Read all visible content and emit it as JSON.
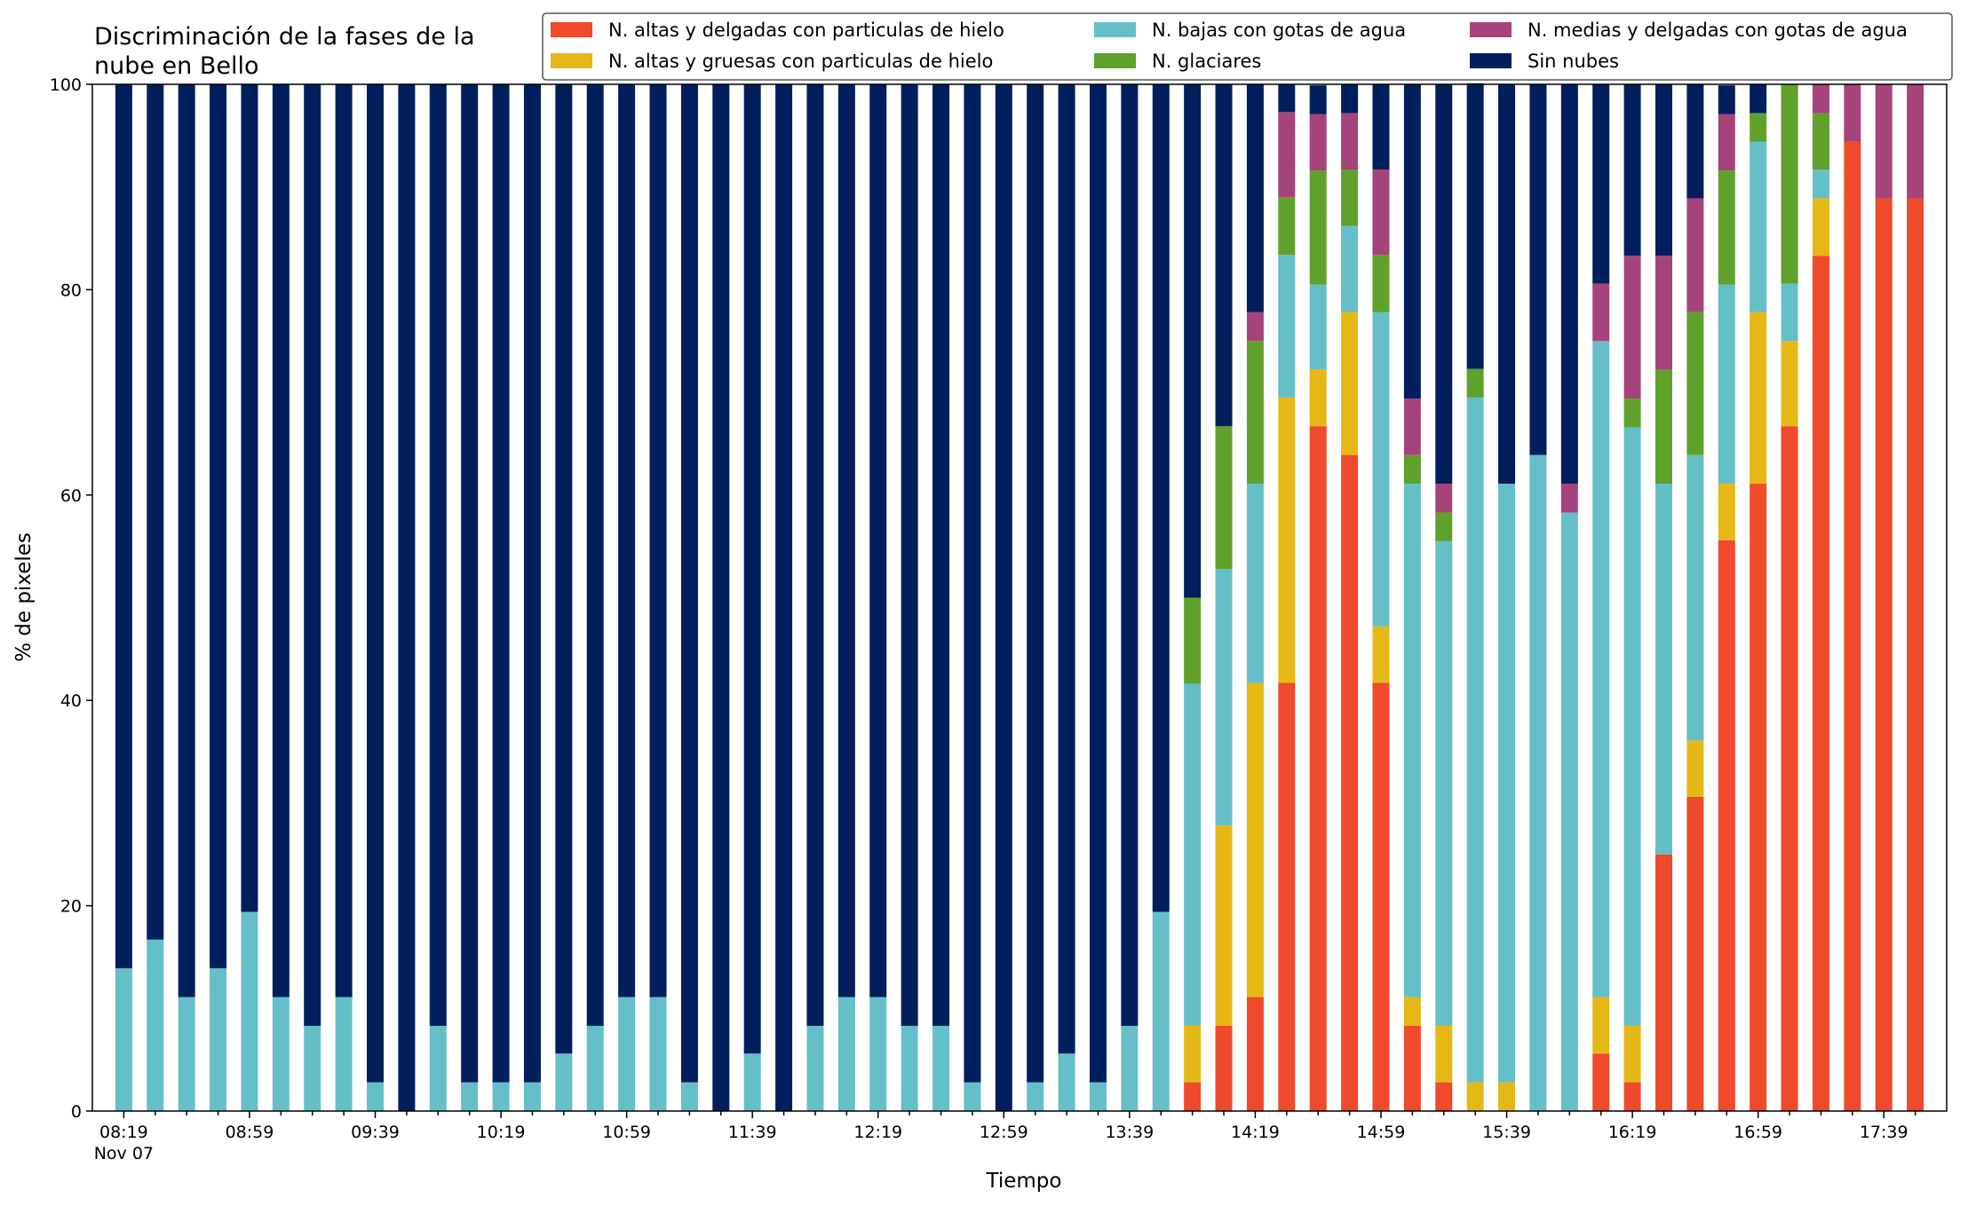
{
  "chart_data": {
    "type": "bar",
    "stacked": true,
    "title_lines": [
      "Discriminación de la fases de la",
      "nube en Bello"
    ],
    "xlabel": "Tiempo",
    "ylabel": "% de pixeles",
    "ylim": [
      0,
      100
    ],
    "yticks": [
      "0",
      "20",
      "40",
      "60",
      "80",
      "100"
    ],
    "grid": false,
    "legend_position": "top-right",
    "x_start_time": "08:19",
    "x_interval_minutes": 10,
    "x_tick_labels": [
      {
        "label": "08:19",
        "sub": "Nov 07"
      },
      {
        "label": "08:59"
      },
      {
        "label": "09:39"
      },
      {
        "label": "10:19"
      },
      {
        "label": "10:59"
      },
      {
        "label": "11:39"
      },
      {
        "label": "12:19"
      },
      {
        "label": "12:59"
      },
      {
        "label": "13:39"
      },
      {
        "label": "14:19"
      },
      {
        "label": "14:59"
      },
      {
        "label": "15:39"
      },
      {
        "label": "16:19"
      },
      {
        "label": "16:59"
      },
      {
        "label": "17:39"
      }
    ],
    "series": [
      {
        "name": "N. altas y delgadas con particulas de hielo",
        "color": "#ee4a2b",
        "values": [
          0,
          0,
          0,
          0,
          0,
          0,
          0,
          0,
          0,
          0,
          0,
          0,
          0,
          0,
          0,
          0,
          0,
          0,
          0,
          0,
          0,
          0,
          0,
          0,
          0,
          0,
          0,
          0,
          0,
          0,
          0,
          0,
          0,
          0,
          2.8,
          8.3,
          11.1,
          41.7,
          66.7,
          63.9,
          41.7,
          8.3,
          2.8,
          0,
          0,
          0,
          0,
          5.6,
          2.8,
          25,
          30.6,
          55.6,
          61.1,
          66.7,
          83.3,
          94.4,
          88.9,
          88.9
        ]
      },
      {
        "name": "N. altas y gruesas con particulas de hielo",
        "color": "#e6b816",
        "values": [
          0,
          0,
          0,
          0,
          0,
          0,
          0,
          0,
          0,
          0,
          0,
          0,
          0,
          0,
          0,
          0,
          0,
          0,
          0,
          0,
          0,
          0,
          0,
          0,
          0,
          0,
          0,
          0,
          0,
          0,
          0,
          0,
          0,
          0,
          5.5,
          19.5,
          30.6,
          27.8,
          5.5,
          13.9,
          5.5,
          2.8,
          5.5,
          2.8,
          2.8,
          0,
          0,
          5.5,
          5.5,
          0,
          5.5,
          5.5,
          16.7,
          8.3,
          5.6,
          0,
          0,
          0
        ]
      },
      {
        "name": "N. bajas con gotas de agua",
        "color": "#65bfc9",
        "values": [
          13.9,
          16.7,
          11.1,
          13.9,
          19.4,
          11.1,
          8.3,
          11.1,
          2.8,
          0,
          8.3,
          2.8,
          2.8,
          2.8,
          5.6,
          8.3,
          11.1,
          11.1,
          2.8,
          0,
          5.6,
          0,
          8.3,
          11.1,
          11.1,
          8.3,
          8.3,
          2.8,
          0,
          2.8,
          5.6,
          2.8,
          8.3,
          19.4,
          33.3,
          25,
          19.4,
          13.9,
          8.3,
          8.4,
          30.6,
          50,
          47.2,
          66.7,
          58.3,
          63.9,
          58.3,
          63.9,
          58.3,
          36.1,
          27.8,
          19.4,
          16.6,
          5.6,
          2.8,
          0,
          0,
          0
        ]
      },
      {
        "name": "N. glaciares",
        "color": "#5fa12b",
        "values": [
          0,
          0,
          0,
          0,
          0,
          0,
          0,
          0,
          0,
          0,
          0,
          0,
          0,
          0,
          0,
          0,
          0,
          0,
          0,
          0,
          0,
          0,
          0,
          0,
          0,
          0,
          0,
          0,
          0,
          0,
          0,
          0,
          0,
          0,
          8.4,
          13.9,
          13.9,
          5.6,
          11.1,
          5.5,
          5.6,
          2.8,
          2.8,
          2.8,
          0,
          0,
          0,
          0,
          2.8,
          11.1,
          13.9,
          11.1,
          2.8,
          19.4,
          5.5,
          0,
          0,
          0
        ]
      },
      {
        "name": "N. medias y delgadas con gotas de agua",
        "color": "#a4447a",
        "values": [
          0,
          0,
          0,
          0,
          0,
          0,
          0,
          0,
          0,
          0,
          0,
          0,
          0,
          0,
          0,
          0,
          0,
          0,
          0,
          0,
          0,
          0,
          0,
          0,
          0,
          0,
          0,
          0,
          0,
          0,
          0,
          0,
          0,
          0,
          0,
          0,
          2.8,
          8.3,
          5.5,
          5.5,
          8.3,
          5.5,
          2.8,
          0,
          0,
          0,
          2.8,
          5.6,
          13.9,
          11.1,
          11.1,
          5.5,
          0,
          0,
          2.8,
          5.6,
          11.1,
          11.1
        ]
      },
      {
        "name": "Sin nubes",
        "color": "#001f5c",
        "values": [
          86.1,
          83.3,
          88.9,
          86.1,
          80.6,
          88.9,
          91.7,
          88.9,
          97.2,
          100,
          91.7,
          97.2,
          97.2,
          97.2,
          94.4,
          91.7,
          88.9,
          88.9,
          97.2,
          100,
          94.4,
          100,
          91.7,
          88.9,
          88.9,
          91.7,
          91.7,
          97.2,
          100,
          97.2,
          94.4,
          97.2,
          91.7,
          80.6,
          50,
          33.3,
          22.2,
          2.7,
          2.8,
          2.8,
          8.3,
          30.6,
          38.9,
          27.8,
          38.9,
          36.1,
          38.9,
          19.4,
          16.7,
          16.7,
          11.1,
          2.8,
          2.8,
          0,
          0,
          0,
          0,
          0
        ]
      }
    ]
  }
}
